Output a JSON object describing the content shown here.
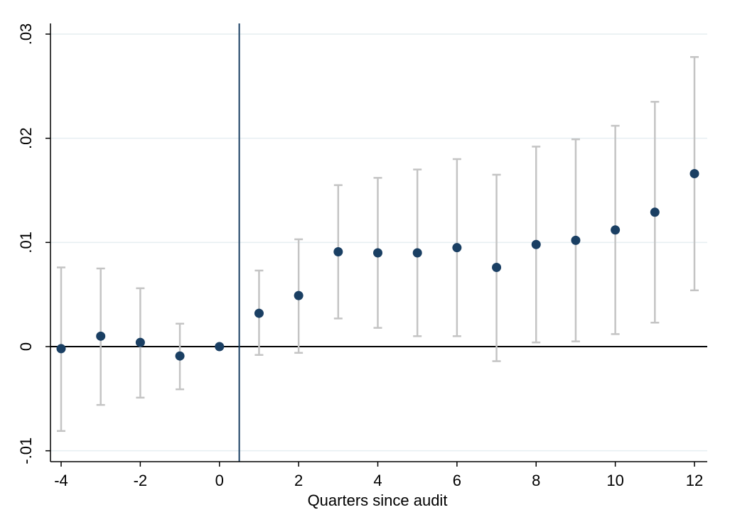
{
  "chart_data": {
    "type": "scatter",
    "title": "",
    "xlabel": "Quarters since audit",
    "ylabel": "",
    "xlim": [
      -4.3,
      12.3
    ],
    "ylim": [
      -0.011,
      0.031
    ],
    "x_ticks": [
      -4,
      -2,
      0,
      2,
      4,
      6,
      8,
      10,
      12
    ],
    "x_tick_labels": [
      "-4",
      "-2",
      "0",
      "2",
      "4",
      "6",
      "8",
      "10",
      "12"
    ],
    "y_ticks": [
      -0.01,
      0,
      0.01,
      0.02,
      0.03
    ],
    "y_tick_labels": [
      "-.01",
      "0",
      ".01",
      ".02",
      ".03"
    ],
    "grid": "horizontal",
    "reference_lines": {
      "horizontal_y": 0,
      "vertical_x": 0.5
    },
    "colors": {
      "point": "#1a3f63",
      "error_bar": "#c4c4c4",
      "grid": "#e6eef1",
      "vertical_line": "#1a3f63",
      "zero_line": "#000000"
    },
    "points": [
      {
        "x": -4,
        "y": -0.0002,
        "ci_low": -0.0081,
        "ci_high": 0.0076
      },
      {
        "x": -3,
        "y": 0.001,
        "ci_low": -0.0056,
        "ci_high": 0.0075
      },
      {
        "x": -2,
        "y": 0.0004,
        "ci_low": -0.0049,
        "ci_high": 0.0056
      },
      {
        "x": -1,
        "y": -0.0009,
        "ci_low": -0.0041,
        "ci_high": 0.0022
      },
      {
        "x": 0,
        "y": 0.0,
        "ci_low": 0.0,
        "ci_high": 0.0
      },
      {
        "x": 1,
        "y": 0.0032,
        "ci_low": -0.0008,
        "ci_high": 0.0073
      },
      {
        "x": 2,
        "y": 0.0049,
        "ci_low": -0.0006,
        "ci_high": 0.0103
      },
      {
        "x": 3,
        "y": 0.0091,
        "ci_low": 0.0027,
        "ci_high": 0.0155
      },
      {
        "x": 4,
        "y": 0.009,
        "ci_low": 0.0018,
        "ci_high": 0.0162
      },
      {
        "x": 5,
        "y": 0.009,
        "ci_low": 0.001,
        "ci_high": 0.017
      },
      {
        "x": 6,
        "y": 0.0095,
        "ci_low": 0.001,
        "ci_high": 0.018
      },
      {
        "x": 7,
        "y": 0.0076,
        "ci_low": -0.0014,
        "ci_high": 0.0165
      },
      {
        "x": 8,
        "y": 0.0098,
        "ci_low": 0.0004,
        "ci_high": 0.0192
      },
      {
        "x": 9,
        "y": 0.0102,
        "ci_low": 0.0005,
        "ci_high": 0.0199
      },
      {
        "x": 10,
        "y": 0.0112,
        "ci_low": 0.0012,
        "ci_high": 0.0212
      },
      {
        "x": 11,
        "y": 0.0129,
        "ci_low": 0.0023,
        "ci_high": 0.0235
      },
      {
        "x": 12,
        "y": 0.0166,
        "ci_low": 0.0054,
        "ci_high": 0.0278
      }
    ]
  }
}
